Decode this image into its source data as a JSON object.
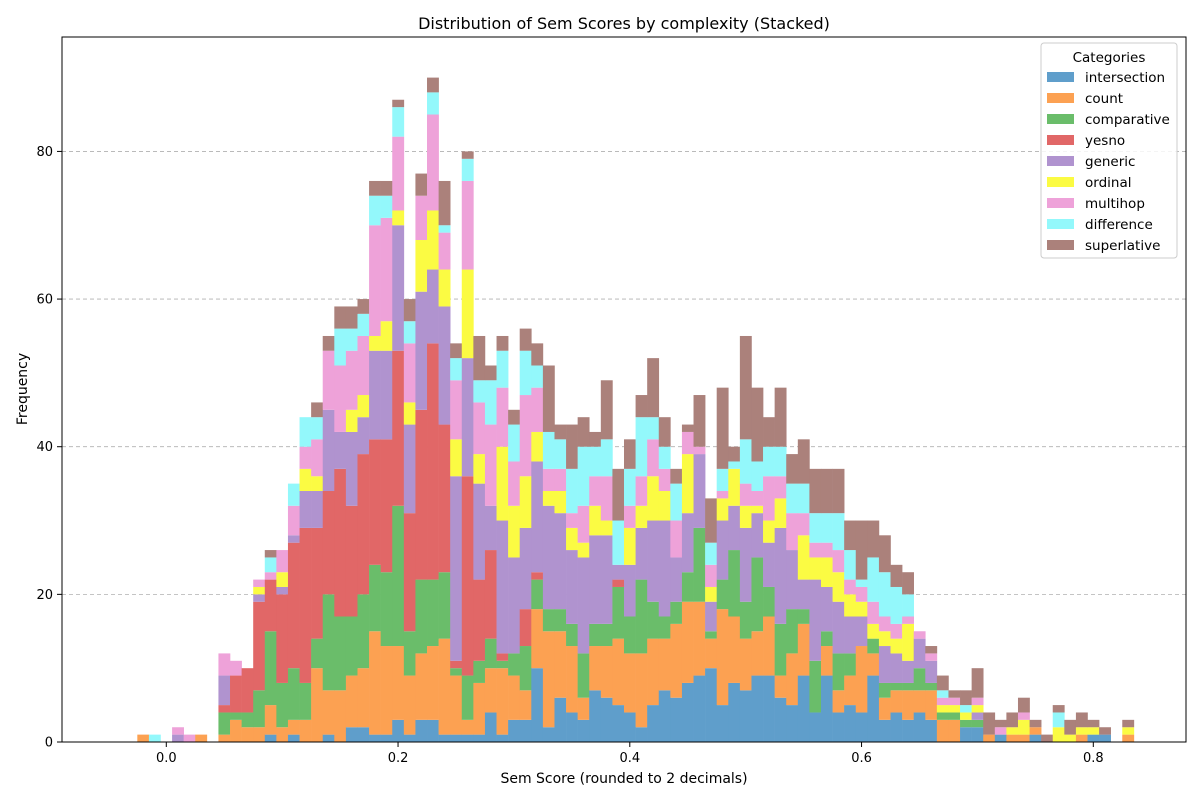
{
  "chart_data": {
    "type": "bar",
    "stacked": true,
    "title": "Distribution of Sem Scores by complexity (Stacked)",
    "xlabel": "Sem Score (rounded to 2 decimals)",
    "ylabel": "Frequency",
    "xlim": [
      -0.09,
      0.88
    ],
    "ylim": [
      0,
      95.5
    ],
    "xticks": [
      0.0,
      0.2,
      0.4,
      0.6,
      0.8
    ],
    "xtick_labels": [
      "0.0",
      "0.2",
      "0.4",
      "0.6",
      "0.8"
    ],
    "yticks": [
      0,
      20,
      40,
      60,
      80
    ],
    "ytick_labels": [
      "0",
      "20",
      "40",
      "60",
      "80"
    ],
    "grid": "y, dashed",
    "legend_title": "Categories",
    "legend_position": "top-right",
    "bin_width": 0.01,
    "x": [
      -0.02,
      -0.01,
      0.0,
      0.01,
      0.02,
      0.03,
      0.04,
      0.05,
      0.06,
      0.07,
      0.08,
      0.09,
      0.1,
      0.11,
      0.12,
      0.13,
      0.14,
      0.15,
      0.16,
      0.17,
      0.18,
      0.19,
      0.2,
      0.21,
      0.22,
      0.23,
      0.24,
      0.25,
      0.26,
      0.27,
      0.28,
      0.29,
      0.3,
      0.31,
      0.32,
      0.33,
      0.34,
      0.35,
      0.36,
      0.37,
      0.38,
      0.39,
      0.4,
      0.41,
      0.42,
      0.43,
      0.44,
      0.45,
      0.46,
      0.47,
      0.48,
      0.49,
      0.5,
      0.51,
      0.52,
      0.53,
      0.54,
      0.55,
      0.56,
      0.57,
      0.58,
      0.59,
      0.6,
      0.61,
      0.62,
      0.63,
      0.64,
      0.65,
      0.66,
      0.67,
      0.68,
      0.69,
      0.7,
      0.71,
      0.72,
      0.73,
      0.74,
      0.75,
      0.76,
      0.77,
      0.78,
      0.79,
      0.8,
      0.81,
      0.82,
      0.83
    ],
    "series": [
      {
        "name": "intersection",
        "color": "#5f9ecb",
        "values": [
          0,
          0,
          0,
          0,
          0,
          0,
          0,
          0,
          0,
          0,
          0,
          1,
          0,
          1,
          0,
          0,
          1,
          0,
          2,
          2,
          1,
          1,
          3,
          1,
          3,
          3,
          1,
          1,
          1,
          1,
          4,
          1,
          3,
          3,
          10,
          2,
          6,
          4,
          3,
          7,
          6,
          5,
          4,
          2,
          5,
          7,
          6,
          8,
          9,
          10,
          5,
          8,
          7,
          9,
          9,
          6,
          5,
          9,
          4,
          9,
          4,
          5,
          4,
          9,
          3,
          4,
          3,
          4,
          3,
          0,
          0,
          2,
          2,
          0,
          1,
          0,
          0,
          1,
          0,
          0,
          0,
          0,
          1,
          1,
          0,
          0
        ]
      },
      {
        "name": "count",
        "color": "#fca152",
        "values": [
          1,
          0,
          0,
          0,
          0,
          1,
          0,
          1,
          3,
          2,
          2,
          4,
          2,
          2,
          3,
          10,
          6,
          7,
          7,
          8,
          14,
          12,
          10,
          8,
          9,
          10,
          13,
          8,
          2,
          7,
          6,
          9,
          6,
          4,
          8,
          13,
          9,
          9,
          3,
          6,
          7,
          9,
          8,
          10,
          9,
          7,
          10,
          11,
          10,
          4,
          13,
          9,
          7,
          6,
          8,
          3,
          7,
          7,
          0,
          4,
          3,
          4,
          9,
          3,
          3,
          3,
          4,
          3,
          4,
          3,
          3,
          0,
          0,
          1,
          0,
          1,
          1,
          1,
          0,
          0,
          0,
          1,
          0,
          0,
          0,
          1
        ]
      },
      {
        "name": "comparative",
        "color": "#6abd6a",
        "values": [
          0,
          0,
          0,
          0,
          0,
          0,
          0,
          3,
          1,
          2,
          5,
          10,
          6,
          7,
          5,
          4,
          13,
          10,
          8,
          10,
          9,
          10,
          19,
          6,
          10,
          9,
          9,
          1,
          6,
          3,
          4,
          1,
          3,
          6,
          4,
          3,
          3,
          3,
          6,
          3,
          3,
          7,
          5,
          10,
          5,
          3,
          3,
          4,
          10,
          1,
          4,
          9,
          5,
          10,
          4,
          7,
          6,
          2,
          7,
          2,
          5,
          3,
          0,
          2,
          2,
          1,
          1,
          3,
          1,
          1,
          1,
          1,
          1,
          0,
          0,
          0,
          0,
          0,
          0,
          0,
          0,
          0,
          0,
          0,
          0,
          0
        ]
      },
      {
        "name": "yesno",
        "color": "#e16767",
        "values": [
          0,
          0,
          0,
          0,
          0,
          0,
          0,
          1,
          5,
          6,
          12,
          7,
          12,
          17,
          21,
          15,
          14,
          20,
          15,
          19,
          17,
          18,
          21,
          16,
          23,
          32,
          20,
          1,
          27,
          11,
          12,
          1,
          0,
          5,
          1,
          0,
          0,
          0,
          0,
          0,
          0,
          1,
          0,
          0,
          0,
          0,
          0,
          0,
          0,
          0,
          0,
          0,
          0,
          0,
          0,
          0,
          0,
          0,
          0,
          0,
          0,
          0,
          0,
          0,
          0,
          0,
          0,
          0,
          0,
          0,
          0,
          0,
          0,
          0,
          0,
          0,
          0,
          0,
          0,
          0,
          0,
          0,
          0,
          0,
          0,
          0
        ]
      },
      {
        "name": "generic",
        "color": "#b093cf",
        "values": [
          0,
          0,
          0,
          1,
          0,
          0,
          0,
          4,
          0,
          0,
          1,
          0,
          1,
          1,
          5,
          5,
          11,
          5,
          10,
          5,
          12,
          12,
          17,
          12,
          16,
          10,
          16,
          25,
          16,
          13,
          6,
          18,
          13,
          11,
          15,
          14,
          13,
          10,
          13,
          12,
          12,
          2,
          7,
          7,
          11,
          13,
          6,
          8,
          10,
          4,
          8,
          6,
          10,
          6,
          6,
          13,
          8,
          4,
          11,
          6,
          7,
          5,
          4,
          0,
          5,
          4,
          3,
          4,
          3,
          0,
          0,
          0,
          1,
          0,
          0,
          0,
          0,
          0,
          0,
          0,
          0,
          0,
          0,
          0,
          0,
          0
        ]
      },
      {
        "name": "ordinal",
        "color": "#fbfb43",
        "values": [
          0,
          0,
          0,
          0,
          0,
          0,
          0,
          0,
          0,
          0,
          1,
          0,
          2,
          0,
          3,
          2,
          0,
          0,
          3,
          3,
          2,
          4,
          2,
          3,
          7,
          8,
          5,
          5,
          12,
          4,
          0,
          10,
          7,
          7,
          4,
          2,
          3,
          3,
          2,
          4,
          2,
          0,
          5,
          3,
          6,
          4,
          0,
          8,
          0,
          2,
          3,
          5,
          3,
          1,
          3,
          4,
          0,
          6,
          3,
          4,
          4,
          3,
          2,
          2,
          2,
          2,
          5,
          0,
          0,
          1,
          1,
          1,
          1,
          0,
          0,
          1,
          2,
          0,
          0,
          2,
          1,
          1,
          1,
          0,
          0,
          1
        ]
      },
      {
        "name": "multihop",
        "color": "#eea2d9",
        "values": [
          0,
          0,
          0,
          1,
          1,
          0,
          0,
          3,
          2,
          0,
          1,
          1,
          3,
          4,
          3,
          5,
          8,
          9,
          8,
          8,
          15,
          14,
          10,
          8,
          6,
          13,
          5,
          8,
          12,
          7,
          11,
          8,
          6,
          11,
          6,
          3,
          3,
          2,
          5,
          4,
          6,
          0,
          3,
          4,
          5,
          3,
          5,
          3,
          1,
          3,
          1,
          0,
          3,
          2,
          6,
          3,
          5,
          3,
          2,
          2,
          3,
          2,
          2,
          3,
          2,
          2,
          1,
          1,
          1,
          1,
          1,
          0,
          1,
          0,
          1,
          0,
          1,
          0,
          0,
          0,
          0,
          0,
          0,
          0,
          0,
          0
        ]
      },
      {
        "name": "difference",
        "color": "#93f8fb",
        "values": [
          0,
          1,
          0,
          0,
          0,
          0,
          0,
          0,
          0,
          0,
          0,
          2,
          0,
          3,
          4,
          3,
          0,
          5,
          3,
          3,
          4,
          3,
          4,
          3,
          0,
          3,
          1,
          3,
          3,
          3,
          6,
          5,
          5,
          6,
          3,
          5,
          4,
          6,
          8,
          4,
          5,
          6,
          5,
          8,
          3,
          3,
          5,
          0,
          0,
          3,
          3,
          1,
          6,
          4,
          4,
          4,
          4,
          4,
          4,
          4,
          5,
          4,
          1,
          6,
          6,
          5,
          3,
          0,
          0,
          1,
          0,
          1,
          0,
          0,
          0,
          0,
          0,
          0,
          0,
          2,
          0,
          0,
          0,
          0,
          0,
          0
        ]
      },
      {
        "name": "superlative",
        "color": "#ab817b",
        "values": [
          0,
          0,
          0,
          0,
          0,
          0,
          0,
          0,
          0,
          0,
          0,
          1,
          0,
          0,
          0,
          2,
          2,
          3,
          3,
          2,
          2,
          2,
          1,
          3,
          3,
          2,
          6,
          2,
          1,
          6,
          2,
          2,
          2,
          3,
          3,
          9,
          2,
          6,
          4,
          2,
          8,
          7,
          4,
          3,
          8,
          4,
          2,
          1,
          7,
          6,
          11,
          2,
          14,
          10,
          4,
          8,
          4,
          6,
          6,
          6,
          6,
          4,
          8,
          5,
          5,
          3,
          3,
          0,
          1,
          2,
          1,
          2,
          4,
          3,
          1,
          2,
          2,
          1,
          1,
          1,
          2,
          2,
          1,
          1,
          0,
          1
        ]
      }
    ]
  }
}
